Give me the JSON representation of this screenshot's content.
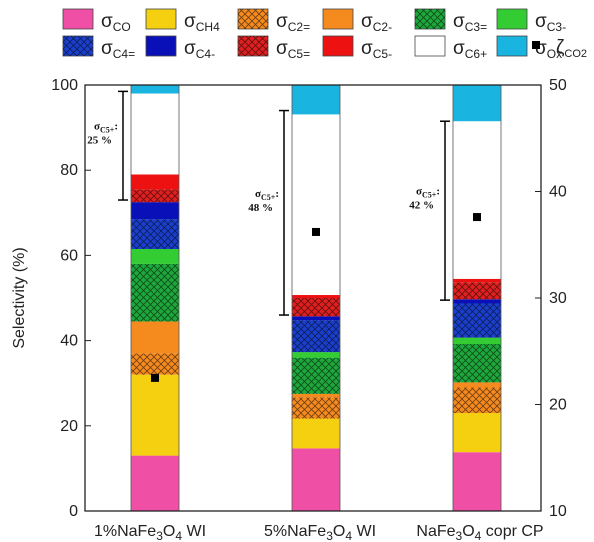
{
  "chart_data": {
    "type": "bar",
    "stacked": true,
    "categories": [
      "1%NaFe3O4 WI",
      "5%NaFe3O4 WI",
      "NaFe3O4 copr CP"
    ],
    "ylabel": "Selectivity (%)",
    "ylim": [
      0,
      100
    ],
    "yticks": [
      0,
      20,
      40,
      60,
      80,
      100
    ],
    "y2lim": [
      10,
      50
    ],
    "y2ticks": [
      10,
      20,
      30,
      40,
      50
    ],
    "legend_position": "top",
    "series": [
      {
        "name": "σCO",
        "main": "σ",
        "sub": "CO",
        "color": "#f04fa6",
        "pattern": "solid",
        "values": [
          13,
          14.7,
          13.8
        ]
      },
      {
        "name": "σCH4",
        "main": "σ",
        "sub": "CH4",
        "color": "#f5d010",
        "pattern": "solid",
        "values": [
          19,
          7,
          9.2
        ]
      },
      {
        "name": "σC2=",
        "main": "σ",
        "sub": "C2=",
        "color": "#f58a1f",
        "pattern": "hatch",
        "values": [
          5,
          5,
          6
        ]
      },
      {
        "name": "σC2-",
        "main": "σ",
        "sub": "C2-",
        "color": "#f58a1f",
        "pattern": "solid",
        "values": [
          7.5,
          0.8,
          1.2
        ]
      },
      {
        "name": "σC3=",
        "main": "σ",
        "sub": "C3=",
        "color": "#1ea83c",
        "pattern": "hatch",
        "values": [
          13.5,
          8.5,
          9
        ]
      },
      {
        "name": "σC3-",
        "main": "σ",
        "sub": "C3-",
        "color": "#33cc33",
        "pattern": "solid",
        "values": [
          3.5,
          1.3,
          1.5
        ]
      },
      {
        "name": "σC4=",
        "main": "σ",
        "sub": "C4=",
        "color": "#1a3fcc",
        "pattern": "hatch",
        "values": [
          7,
          7.5,
          8
        ]
      },
      {
        "name": "σC4-",
        "main": "σ",
        "sub": "C4-",
        "color": "#0a10b8",
        "pattern": "solid",
        "values": [
          4,
          0.9,
          1
        ]
      },
      {
        "name": "σC5=",
        "main": "σ",
        "sub": "C5=",
        "color": "#e02020",
        "pattern": "hatch",
        "values": [
          3,
          4.3,
          4
        ]
      },
      {
        "name": "σC5-",
        "main": "σ",
        "sub": "C5-",
        "color": "#ee1111",
        "pattern": "solid",
        "values": [
          3.5,
          0.7,
          0.8
        ]
      },
      {
        "name": "σC6+",
        "main": "σ",
        "sub": "C6+",
        "color": "#ffffff",
        "pattern": "solid",
        "values": [
          19,
          42.4,
          37
        ]
      },
      {
        "name": "σOx",
        "main": "σ",
        "sub": "Ox",
        "color": "#1ab4e0",
        "pattern": "solid",
        "values": [
          2,
          6.9,
          8.5
        ]
      }
    ],
    "zeta": {
      "name": "ζCO2",
      "main": "ζ",
      "sub": "CO2",
      "axis": "right",
      "marker": "square",
      "values": [
        22.5,
        36.2,
        37.6
      ]
    },
    "annotations": [
      {
        "label": "σC5+:",
        "label_main": "σ",
        "label_sub": "C5+",
        "label_suffix": ":",
        "value": "25 %",
        "bar": 0,
        "range": [
          73,
          98.5
        ]
      },
      {
        "label": "σC5+:",
        "label_main": "σ",
        "label_sub": "C5+",
        "label_suffix": ":",
        "value": "48 %",
        "bar": 1,
        "range": [
          46,
          94
        ]
      },
      {
        "label": "σC5+:",
        "label_main": "σ",
        "label_sub": "C5+",
        "label_suffix": ":",
        "value": "42 %",
        "bar": 2,
        "range": [
          49.5,
          91.5
        ]
      }
    ]
  }
}
